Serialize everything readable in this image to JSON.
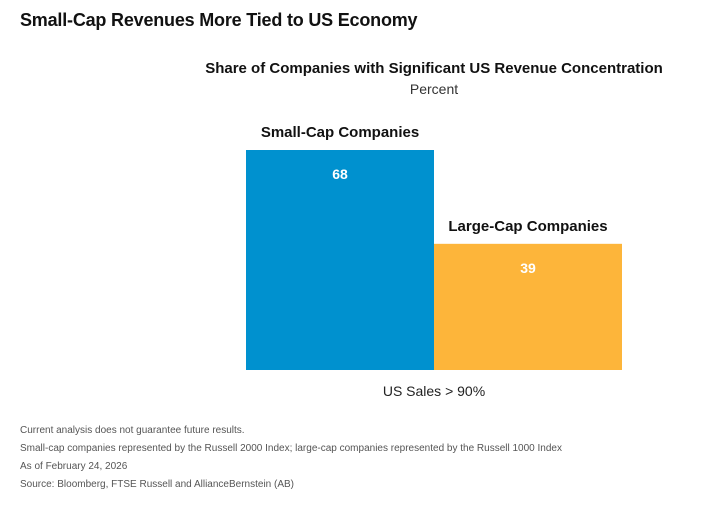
{
  "page": {
    "main_title": "Small-Cap Revenues More Tied to US Economy"
  },
  "chart_data": {
    "type": "bar",
    "title": "Share of Companies with Significant US Revenue Concentration",
    "subtitle": "Percent",
    "xlabel": "US Sales > 90%",
    "ylabel": "",
    "categories": [
      "Small-Cap Companies",
      "Large-Cap Companies"
    ],
    "values": [
      68,
      39
    ],
    "colors": [
      "#0091CF",
      "#FDB53A"
    ],
    "value_label_color": "#ffffff",
    "ylim": [
      0,
      68
    ],
    "grid": false,
    "legend": "none"
  },
  "footnotes": [
    "Current analysis does not guarantee future results.",
    "Small-cap companies represented by the Russell 2000 Index; large-cap companies represented by the Russell 1000 Index",
    "As of February 24, 2026",
    "Source: Bloomberg, FTSE Russell and AllianceBernstein (AB)"
  ]
}
